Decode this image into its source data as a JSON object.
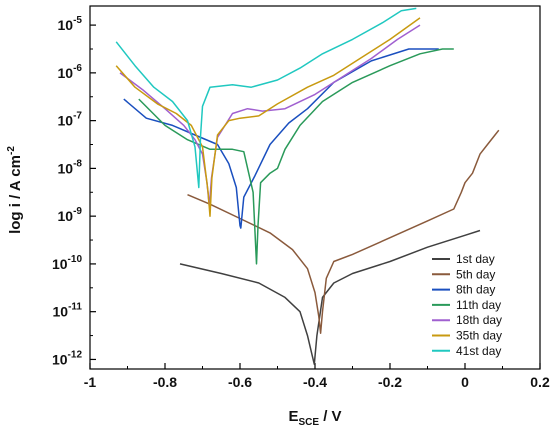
{
  "chart_data": {
    "type": "line",
    "xlabel_main": "E",
    "xlabel_sub": "SCE",
    "xlabel_unit": " / V",
    "ylabel_main": "log i / A cm",
    "ylabel_sup": "-2",
    "xlim": [
      -1.0,
      0.2
    ],
    "ylim_exp": [
      -12.2,
      -4.6
    ],
    "x_ticks": [
      "-1",
      "-0.8",
      "-0.6",
      "-0.4",
      "-0.2",
      "0",
      "0.2"
    ],
    "y_ticks": [
      {
        "base": "10",
        "exp": "-12"
      },
      {
        "base": "10",
        "exp": "-11"
      },
      {
        "base": "10",
        "exp": "-10"
      },
      {
        "base": "10",
        "exp": "-9"
      },
      {
        "base": "10",
        "exp": "-8"
      },
      {
        "base": "10",
        "exp": "-7"
      },
      {
        "base": "10",
        "exp": "-6"
      },
      {
        "base": "10",
        "exp": "-5"
      }
    ],
    "legend_position": "bottom-right",
    "series": [
      {
        "name": "1st day",
        "color": "#404040",
        "points": [
          [
            -0.76,
            -10.0
          ],
          [
            -0.65,
            -10.2
          ],
          [
            -0.55,
            -10.4
          ],
          [
            -0.48,
            -10.7
          ],
          [
            -0.44,
            -11.0
          ],
          [
            -0.42,
            -11.5
          ],
          [
            -0.408,
            -11.9
          ],
          [
            -0.402,
            -12.1
          ],
          [
            -0.395,
            -11.5
          ],
          [
            -0.38,
            -10.7
          ],
          [
            -0.35,
            -10.4
          ],
          [
            -0.3,
            -10.2
          ],
          [
            -0.2,
            -9.95
          ],
          [
            -0.1,
            -9.65
          ],
          [
            0.0,
            -9.4
          ],
          [
            0.04,
            -9.3
          ]
        ]
      },
      {
        "name": "5th day",
        "color": "#8a5a3c",
        "points": [
          [
            -0.74,
            -8.55
          ],
          [
            -0.68,
            -8.75
          ],
          [
            -0.6,
            -9.05
          ],
          [
            -0.52,
            -9.35
          ],
          [
            -0.46,
            -9.7
          ],
          [
            -0.42,
            -10.1
          ],
          [
            -0.4,
            -10.6
          ],
          [
            -0.39,
            -11.1
          ],
          [
            -0.385,
            -11.45
          ],
          [
            -0.38,
            -11.0
          ],
          [
            -0.37,
            -10.3
          ],
          [
            -0.35,
            -9.95
          ],
          [
            -0.3,
            -9.8
          ],
          [
            -0.2,
            -9.45
          ],
          [
            -0.1,
            -9.1
          ],
          [
            -0.03,
            -8.85
          ],
          [
            -0.01,
            -8.5
          ],
          [
            0.0,
            -8.3
          ],
          [
            0.02,
            -8.1
          ],
          [
            0.04,
            -7.7
          ],
          [
            0.06,
            -7.5
          ],
          [
            0.08,
            -7.3
          ],
          [
            0.09,
            -7.2
          ]
        ]
      },
      {
        "name": "8th day",
        "color": "#1a4fbf",
        "points": [
          [
            -0.91,
            -6.55
          ],
          [
            -0.85,
            -6.95
          ],
          [
            -0.78,
            -7.1
          ],
          [
            -0.72,
            -7.3
          ],
          [
            -0.66,
            -7.5
          ],
          [
            -0.63,
            -7.9
          ],
          [
            -0.61,
            -8.4
          ],
          [
            -0.6,
            -9.2
          ],
          [
            -0.598,
            -9.25
          ],
          [
            -0.59,
            -8.6
          ],
          [
            -0.56,
            -8.15
          ],
          [
            -0.52,
            -7.5
          ],
          [
            -0.47,
            -7.05
          ],
          [
            -0.42,
            -6.75
          ],
          [
            -0.35,
            -6.2
          ],
          [
            -0.25,
            -5.75
          ],
          [
            -0.15,
            -5.5
          ],
          [
            -0.07,
            -5.5
          ]
        ]
      },
      {
        "name": "11th day",
        "color": "#2a9a5a",
        "points": [
          [
            -0.87,
            -6.55
          ],
          [
            -0.8,
            -7.1
          ],
          [
            -0.74,
            -7.4
          ],
          [
            -0.68,
            -7.6
          ],
          [
            -0.62,
            -7.6
          ],
          [
            -0.59,
            -7.65
          ],
          [
            -0.565,
            -8.5
          ],
          [
            -0.556,
            -10.0
          ],
          [
            -0.552,
            -9.2
          ],
          [
            -0.545,
            -8.3
          ],
          [
            -0.52,
            -8.1
          ],
          [
            -0.5,
            -8.0
          ],
          [
            -0.48,
            -7.6
          ],
          [
            -0.44,
            -7.1
          ],
          [
            -0.38,
            -6.6
          ],
          [
            -0.3,
            -6.2
          ],
          [
            -0.2,
            -5.85
          ],
          [
            -0.12,
            -5.6
          ],
          [
            -0.06,
            -5.5
          ],
          [
            -0.03,
            -5.5
          ]
        ]
      },
      {
        "name": "18th day",
        "color": "#a060d0",
        "points": [
          [
            -0.92,
            -6.0
          ],
          [
            -0.86,
            -6.35
          ],
          [
            -0.8,
            -6.75
          ],
          [
            -0.75,
            -7.1
          ],
          [
            -0.72,
            -7.4
          ],
          [
            -0.7,
            -7.7
          ],
          [
            -0.688,
            -8.3
          ],
          [
            -0.682,
            -8.8
          ],
          [
            -0.676,
            -8.2
          ],
          [
            -0.66,
            -7.35
          ],
          [
            -0.62,
            -6.85
          ],
          [
            -0.58,
            -6.75
          ],
          [
            -0.54,
            -6.8
          ],
          [
            -0.48,
            -6.75
          ],
          [
            -0.4,
            -6.45
          ],
          [
            -0.32,
            -6.05
          ],
          [
            -0.25,
            -5.7
          ],
          [
            -0.18,
            -5.3
          ],
          [
            -0.12,
            -5.0
          ]
        ]
      },
      {
        "name": "35th day",
        "color": "#c89a10",
        "points": [
          [
            -0.93,
            -5.85
          ],
          [
            -0.88,
            -6.3
          ],
          [
            -0.82,
            -6.65
          ],
          [
            -0.77,
            -6.85
          ],
          [
            -0.73,
            -7.1
          ],
          [
            -0.7,
            -7.55
          ],
          [
            -0.685,
            -8.5
          ],
          [
            -0.68,
            -9.0
          ],
          [
            -0.675,
            -8.2
          ],
          [
            -0.66,
            -7.3
          ],
          [
            -0.63,
            -7.0
          ],
          [
            -0.6,
            -6.95
          ],
          [
            -0.55,
            -6.9
          ],
          [
            -0.5,
            -6.65
          ],
          [
            -0.42,
            -6.3
          ],
          [
            -0.35,
            -6.05
          ],
          [
            -0.28,
            -5.7
          ],
          [
            -0.2,
            -5.3
          ],
          [
            -0.12,
            -4.85
          ]
        ]
      },
      {
        "name": "41st day",
        "color": "#20c8c0",
        "points": [
          [
            -0.93,
            -5.35
          ],
          [
            -0.88,
            -5.85
          ],
          [
            -0.83,
            -6.3
          ],
          [
            -0.78,
            -6.6
          ],
          [
            -0.74,
            -7.0
          ],
          [
            -0.72,
            -7.55
          ],
          [
            -0.71,
            -8.4
          ],
          [
            -0.705,
            -7.3
          ],
          [
            -0.7,
            -6.7
          ],
          [
            -0.68,
            -6.3
          ],
          [
            -0.62,
            -6.25
          ],
          [
            -0.57,
            -6.3
          ],
          [
            -0.5,
            -6.15
          ],
          [
            -0.44,
            -5.9
          ],
          [
            -0.38,
            -5.6
          ],
          [
            -0.3,
            -5.3
          ],
          [
            -0.22,
            -4.95
          ],
          [
            -0.17,
            -4.7
          ],
          [
            -0.13,
            -4.65
          ]
        ]
      }
    ]
  }
}
